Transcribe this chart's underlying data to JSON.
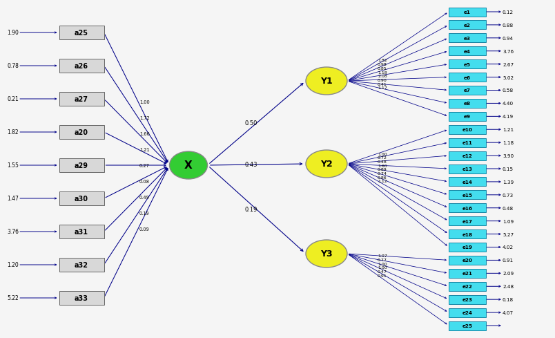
{
  "left_boxes": [
    "a25",
    "a26",
    "a27",
    "a20",
    "a29",
    "a30",
    "a31",
    "a32",
    "a33"
  ],
  "left_errors": [
    "1.90",
    "0.78",
    "0.21",
    "1.82",
    "1.55",
    "1.47",
    "3.76",
    "1.20",
    "5.22"
  ],
  "left_path_coefs": [
    "1.00",
    "1.72",
    "1.66",
    "1.21",
    "0.27",
    "0.08",
    "0.49",
    "0.19",
    "0.09"
  ],
  "center_node": "X",
  "x_to_y_coefs": [
    "0.50",
    "0.43",
    "0.19"
  ],
  "y1_indicators": [
    "e1",
    "e2",
    "e3",
    "e4",
    "e5",
    "e6",
    "e7",
    "e8",
    "e9"
  ],
  "y2_indicators": [
    "e10",
    "e11",
    "e12",
    "e13",
    "e14",
    "e15",
    "e16",
    "e17",
    "e18",
    "e19"
  ],
  "y3_indicators": [
    "e20",
    "e21",
    "e22",
    "e23",
    "e24",
    "e25"
  ],
  "y1_errors": [
    "0.12",
    "0.88",
    "0.94",
    "3.76",
    "2.67",
    "5.02",
    "0.58",
    "4.40",
    "4.19"
  ],
  "y2_errors": [
    "1.21",
    "1.18",
    "3.90",
    "0.15",
    "1.39",
    "0.73",
    "0.48",
    "1.09",
    "5.27",
    "4.02"
  ],
  "y3_errors": [
    "0.91",
    "2.09",
    "2.48",
    "0.18",
    "4.07",
    ""
  ],
  "y1_path_coefs": [
    "1.82",
    "0.98",
    "0.85",
    "1.18",
    "2.08",
    "0.90",
    "0.41",
    "1.17",
    ""
  ],
  "y2_path_coefs": [
    "1.00",
    "0.72",
    "0.48",
    "1.60",
    "0.89",
    "0.74",
    "0.86",
    "1.12",
    "",
    ""
  ],
  "y3_path_coefs": [
    "1.07",
    "0.77",
    "1.00",
    "1.00",
    "0.47",
    "0.91"
  ],
  "bg_color": "#f5f5f5",
  "box_fill": "#d8d8d8",
  "ellipse_x_fill": "#33cc33",
  "ellipse_y_fill": "#eeee22",
  "cyan_fill": "#44ddee",
  "arrow_color": "#000088",
  "text_dark": "#000000"
}
